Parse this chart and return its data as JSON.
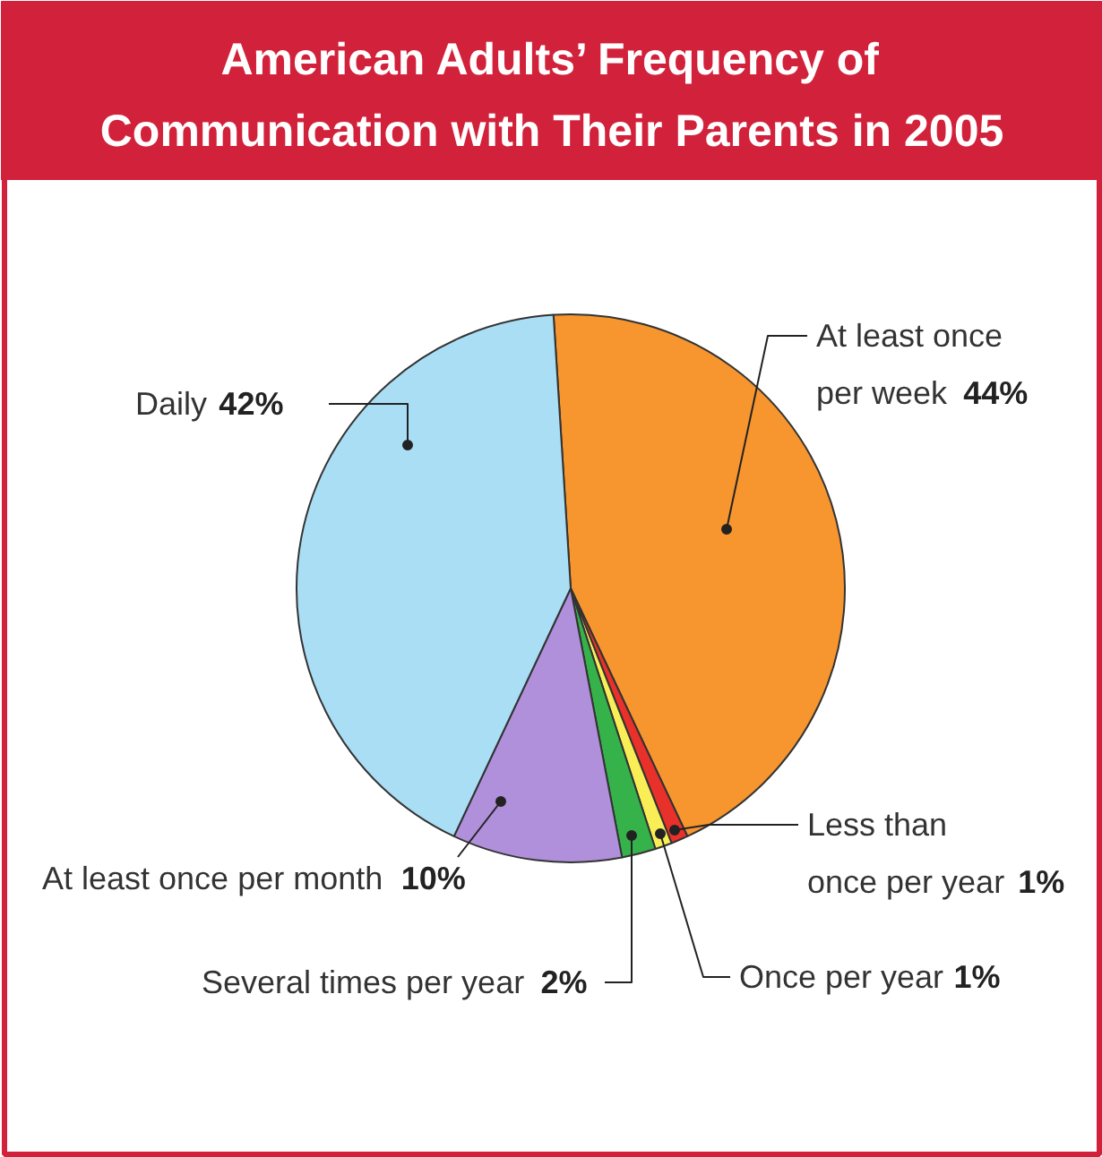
{
  "chart_data": {
    "type": "pie",
    "title": "American Adults’ Frequency of\nCommunication with Their Parents in 2005",
    "categories": [
      "At least once\nper week",
      "Less than\nonce per year",
      "Once per year",
      "Several times per year",
      "At least once per month",
      "Daily"
    ],
    "values": [
      44,
      1,
      1,
      2,
      10,
      42
    ],
    "colors": [
      "#f7952f",
      "#e8312a",
      "#f9ee55",
      "#35b34a",
      "#b08fdb",
      "#a9def5"
    ],
    "value_labels": [
      "44%",
      "1%",
      "1%",
      "2%",
      "10%",
      "42%"
    ]
  }
}
